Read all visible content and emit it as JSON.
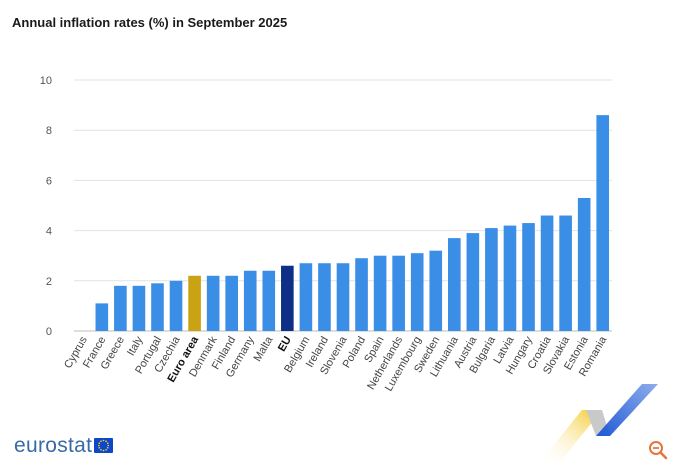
{
  "page": {
    "title": "Annual inflation rates (%) in September 2025",
    "brand": "eurostat"
  },
  "colors": {
    "bar_default": "#3b8ee6",
    "euro_area": "#c9a314",
    "eu": "#0d2f86",
    "grid": "#e2e2e2",
    "axis": "#bdbdbd",
    "brand": "#3a6aa6",
    "logo_yellow": "#f5c518",
    "logo_blue": "#1f5ad6",
    "zoom_icon": "#e8743b"
  },
  "chart_data": {
    "type": "bar",
    "title": "Annual inflation rates (%) in September 2025",
    "xlabel": "",
    "ylabel": "",
    "ylim": [
      0,
      10
    ],
    "yticks": [
      0,
      2,
      4,
      6,
      8,
      10
    ],
    "grid": true,
    "categories": [
      "Cyprus",
      "France",
      "Greece",
      "Italy",
      "Portugal",
      "Czechia",
      "Euro area",
      "Denmark",
      "Finland",
      "Germany",
      "Malta",
      "EU",
      "Belgium",
      "Ireland",
      "Slovenia",
      "Poland",
      "Spain",
      "Netherlands",
      "Luxembourg",
      "Sweden",
      "Lithuania",
      "Austria",
      "Bulgaria",
      "Latvia",
      "Hungary",
      "Croatia",
      "Slovakia",
      "Estonia",
      "Romania"
    ],
    "values": [
      0.0,
      1.1,
      1.8,
      1.8,
      1.9,
      2.0,
      2.2,
      2.2,
      2.2,
      2.4,
      2.4,
      2.6,
      2.7,
      2.7,
      2.7,
      2.9,
      3.0,
      3.0,
      3.1,
      3.2,
      3.7,
      3.9,
      4.1,
      4.2,
      4.3,
      4.6,
      4.6,
      5.3,
      8.6
    ],
    "highlight": {
      "Euro area": "euro_area",
      "EU": "eu"
    },
    "bold_labels": [
      "Euro area",
      "EU"
    ]
  }
}
